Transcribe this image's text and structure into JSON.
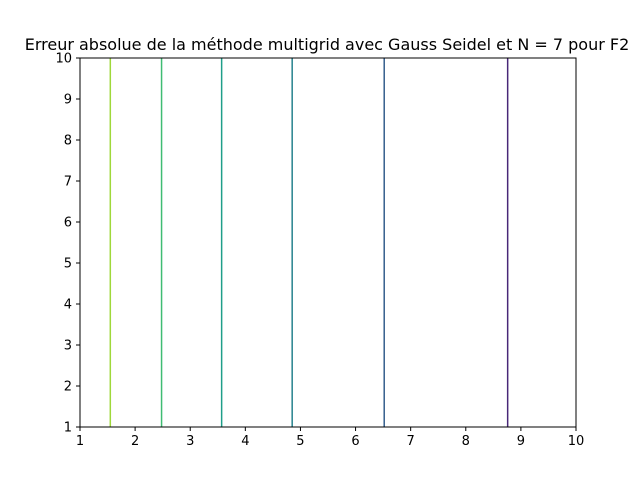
{
  "chart_data": {
    "type": "line",
    "title": "Erreur absolue de la méthode multigrid avec Gauss Seidel et N = 7 pour F2",
    "xlabel": "",
    "ylabel": "",
    "xlim": [
      1,
      10
    ],
    "ylim": [
      1,
      10
    ],
    "xticks": [
      "1",
      "2",
      "3",
      "4",
      "5",
      "6",
      "7",
      "8",
      "9",
      "10"
    ],
    "yticks": [
      "1",
      "2",
      "3",
      "4",
      "5",
      "6",
      "7",
      "8",
      "9",
      "10"
    ],
    "grid": false,
    "legend": "none",
    "series": [
      {
        "x": [
          1.55,
          1.55
        ],
        "y": [
          1,
          10
        ],
        "color": "#9fd83a"
      },
      {
        "x": [
          2.48,
          2.48
        ],
        "y": [
          1,
          10
        ],
        "color": "#3fbc73"
      },
      {
        "x": [
          3.57,
          3.57
        ],
        "y": [
          1,
          10
        ],
        "color": "#1f9e89"
      },
      {
        "x": [
          4.85,
          4.85
        ],
        "y": [
          1,
          10
        ],
        "color": "#26828e"
      },
      {
        "x": [
          6.52,
          6.52
        ],
        "y": [
          1,
          10
        ],
        "color": "#355f8d"
      },
      {
        "x": [
          8.76,
          8.76
        ],
        "y": [
          1,
          10
        ],
        "color": "#482878"
      }
    ]
  }
}
